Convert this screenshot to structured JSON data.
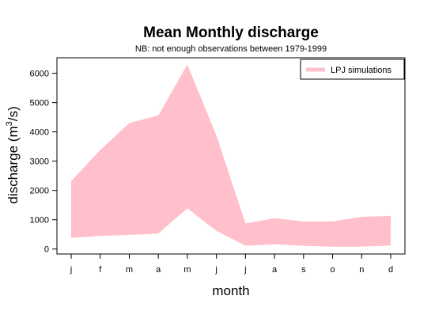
{
  "chart_data": {
    "type": "area",
    "title": "Mean Monthly discharge",
    "subtitle": "NB: not enough observations between 1979-1999",
    "xlabel": "month",
    "ylabel_main": "discharge (m",
    "ylabel_sup": "3",
    "ylabel_end": "/s)",
    "categories": [
      "j",
      "f",
      "m",
      "a",
      "m",
      "j",
      "j",
      "a",
      "s",
      "o",
      "n",
      "d"
    ],
    "yticks": [
      0,
      1000,
      2000,
      3000,
      4000,
      5000,
      6000
    ],
    "ylim": [
      -170,
      6530
    ],
    "grid": false,
    "legend_position": "top-right",
    "series": [
      {
        "name": "LPJ simulations",
        "color": "#FFC0CB",
        "upper": [
          2320,
          3380,
          4300,
          4560,
          6300,
          3880,
          870,
          1050,
          940,
          940,
          1100,
          1130
        ],
        "lower": [
          380,
          450,
          480,
          530,
          1390,
          620,
          110,
          160,
          110,
          80,
          80,
          120
        ]
      }
    ]
  }
}
